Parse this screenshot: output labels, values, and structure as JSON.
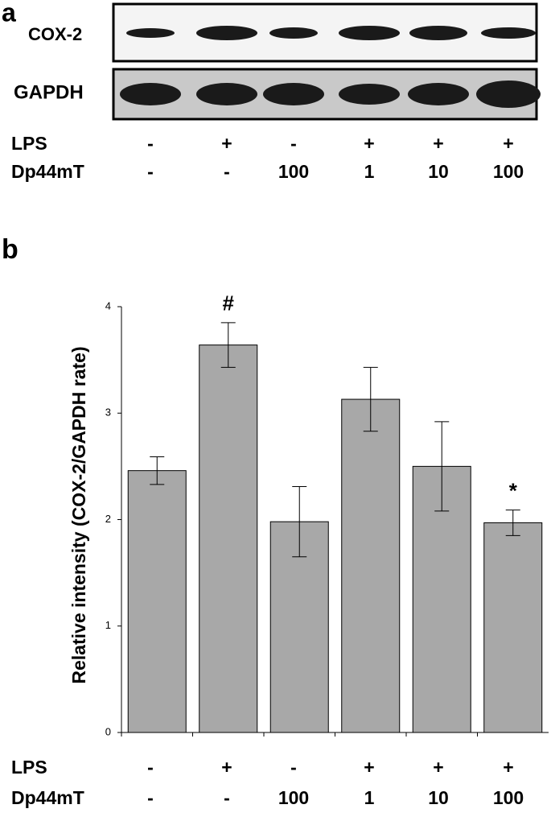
{
  "panel_a": {
    "label": "a",
    "blots": [
      "COX-2",
      "GAPDH"
    ],
    "conditions": [
      {
        "name": "LPS",
        "values": [
          "-",
          "+",
          "-",
          "+",
          "+",
          "+"
        ]
      },
      {
        "name": "Dp44mT",
        "values": [
          "-",
          "-",
          "100",
          "1",
          "10",
          "100"
        ]
      }
    ]
  },
  "chart_data": {
    "type": "bar",
    "panel_label": "b",
    "y_label": "Relative intensity (COX-2/GAPDH rate)",
    "values": [
      2.46,
      3.64,
      1.98,
      3.13,
      2.5,
      1.97
    ],
    "errors": [
      0.13,
      0.21,
      0.33,
      0.3,
      0.42,
      0.12
    ],
    "annotations": [
      null,
      "#",
      null,
      null,
      null,
      "*"
    ],
    "color": "#a8a8a8",
    "ylim": [
      0,
      4
    ],
    "yticks": [
      0,
      1,
      2,
      3,
      4
    ],
    "conditions": [
      {
        "name": "LPS",
        "values": [
          "-",
          "+",
          "-",
          "+",
          "+",
          "+"
        ]
      },
      {
        "name": "Dp44mT",
        "values": [
          "-",
          "-",
          "100",
          "1",
          "10",
          "100"
        ]
      }
    ]
  }
}
